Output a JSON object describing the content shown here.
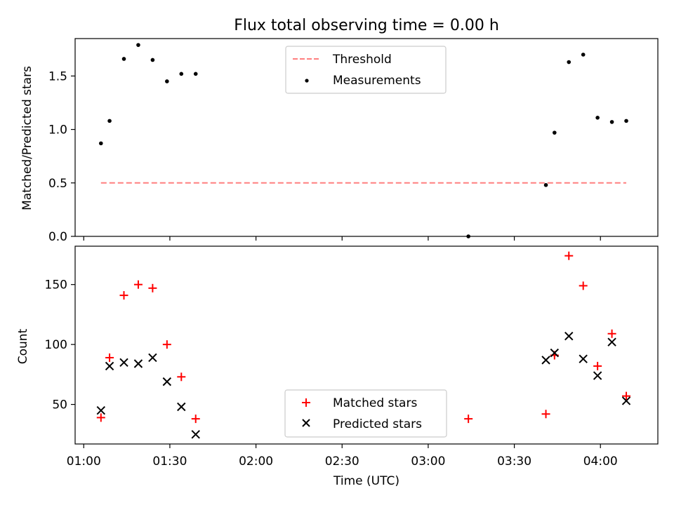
{
  "chart_data": [
    {
      "type": "scatter",
      "title": "Flux total observing time = 0.00 h",
      "xlabel": "",
      "ylabel": "Matched/Predicted stars",
      "xlim": [
        "00:57",
        "04:20"
      ],
      "ylim": [
        0,
        1.85
      ],
      "y_ticks": [
        0.0,
        0.5,
        1.0,
        1.5
      ],
      "y_tick_labels": [
        "0.0",
        "0.5",
        "1.0",
        "1.5"
      ],
      "x_ticks": [
        "01:00",
        "01:30",
        "02:00",
        "02:30",
        "03:00",
        "03:30",
        "04:00"
      ],
      "legend_position": "top-center",
      "threshold": {
        "name": "Threshold",
        "color": "#ff7f7f",
        "style": "dashed",
        "y": 0.5,
        "x_start": "01:06",
        "x_end": "04:09"
      },
      "series": [
        {
          "name": "Measurements",
          "color": "#000000",
          "marker": "dot",
          "x": [
            "01:06",
            "01:09",
            "01:14",
            "01:19",
            "01:24",
            "01:29",
            "01:34",
            "01:39",
            "03:14",
            "03:41",
            "03:44",
            "03:49",
            "03:54",
            "03:59",
            "04:04",
            "04:09"
          ],
          "y": [
            0.87,
            1.08,
            1.66,
            1.79,
            1.65,
            1.45,
            1.52,
            1.52,
            0.0,
            0.48,
            0.97,
            1.63,
            1.7,
            1.11,
            1.07,
            1.08
          ]
        }
      ]
    },
    {
      "type": "scatter",
      "title": "",
      "xlabel": "Time (UTC)",
      "ylabel": "Count",
      "xlim": [
        "00:57",
        "04:20"
      ],
      "ylim": [
        17,
        182
      ],
      "y_ticks": [
        50,
        100,
        150
      ],
      "y_tick_labels": [
        "50",
        "100",
        "150"
      ],
      "x_ticks": [
        "01:00",
        "01:30",
        "02:00",
        "02:30",
        "03:00",
        "03:30",
        "04:00"
      ],
      "x_tick_labels": [
        "01:00",
        "01:30",
        "02:00",
        "02:30",
        "03:00",
        "03:30",
        "04:00"
      ],
      "legend_position": "bottom-center",
      "series": [
        {
          "name": "Matched stars",
          "color": "#ff0000",
          "marker": "plus",
          "x": [
            "01:06",
            "01:09",
            "01:14",
            "01:19",
            "01:24",
            "01:29",
            "01:34",
            "01:39",
            "03:14",
            "03:41",
            "03:44",
            "03:49",
            "03:54",
            "03:59",
            "04:04",
            "04:09"
          ],
          "y": [
            39,
            89,
            141,
            150,
            147,
            100,
            73,
            38,
            38,
            42,
            91,
            174,
            149,
            82,
            109,
            57
          ]
        },
        {
          "name": "Predicted stars",
          "color": "#000000",
          "marker": "x",
          "x": [
            "01:06",
            "01:09",
            "01:14",
            "01:19",
            "01:24",
            "01:29",
            "01:34",
            "01:39",
            "03:41",
            "03:44",
            "03:49",
            "03:54",
            "03:59",
            "04:04",
            "04:09"
          ],
          "y": [
            45,
            82,
            85,
            84,
            89,
            69,
            48,
            25,
            87,
            93,
            107,
            88,
            74,
            102,
            53
          ]
        }
      ]
    }
  ]
}
